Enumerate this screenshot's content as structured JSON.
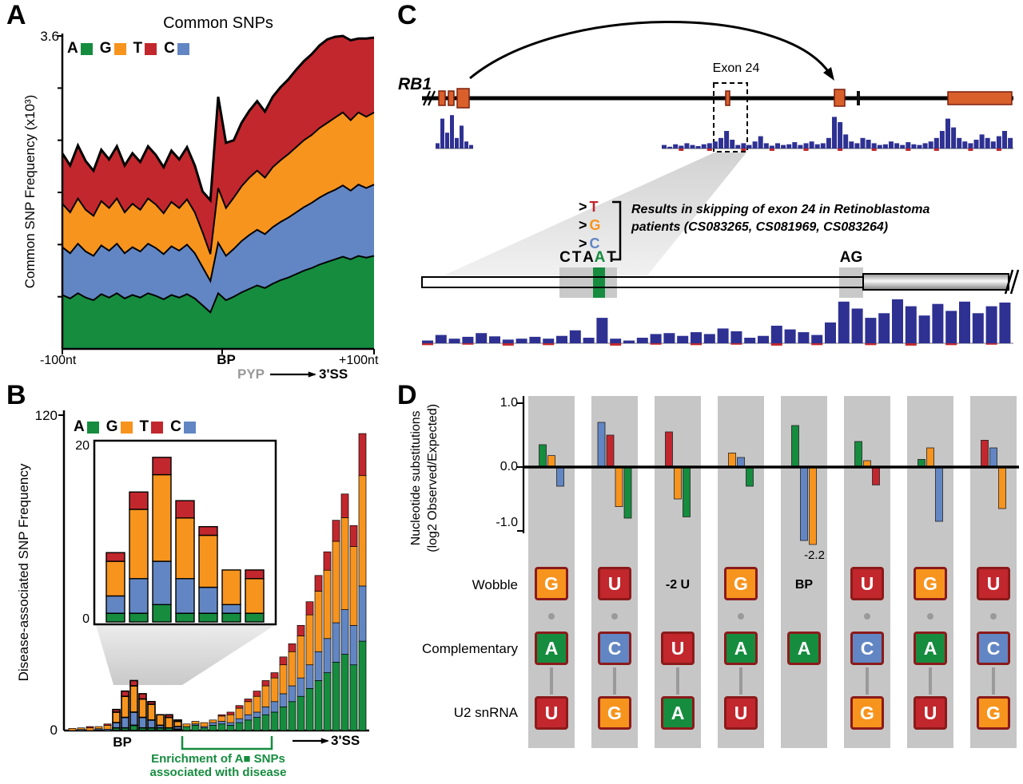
{
  "nt_legend": [
    {
      "letter": "A",
      "color": "#168c3f"
    },
    {
      "letter": "G",
      "color": "#f7941e"
    },
    {
      "letter": "T",
      "color": "#c1272d"
    },
    {
      "letter": "C",
      "color": "#6286c3"
    }
  ],
  "colors": {
    "green": "#168c3f",
    "orange": "#f7941e",
    "red": "#c1272d",
    "blue": "#6286c3",
    "navy": "#2e3192",
    "exon": "#d9602b",
    "exon_border": "#7b1f0e",
    "band_gray": "#c6c6c6",
    "box_border": "#8b1a1a",
    "pyp_gray": "#999999"
  },
  "panelA": {
    "label": "A",
    "title": "Common SNPs",
    "ylabel": "Common SNP Frequency (x10³)",
    "ymax_label": "3.6",
    "x_left": "-100nt",
    "x_bp": "BP",
    "x_pyp": "PYP",
    "x_3ss": "3'SS",
    "x_right": "+100nt"
  },
  "panelB": {
    "label": "B",
    "ylabel": "Disease-associated SNP Frequency",
    "y_top": "120",
    "y_bottom": "0",
    "inset_top": "20",
    "inset_bottom": "0",
    "x_bp": "BP",
    "x_3ss": "3'SS",
    "bracket_line1": "Enrichment of A■ SNPs",
    "bracket_line2": "associated with disease"
  },
  "panelC": {
    "label": "C",
    "gene": "RB1",
    "exon_label": "Exon 24",
    "sequence": [
      "C",
      "T",
      "A",
      "A",
      "T"
    ],
    "sequence_green_index": 3,
    "ag_label": "AG",
    "substitutions": [
      {
        "prefix": ">",
        "letter": "T",
        "color": "#c1272d"
      },
      {
        "prefix": ">",
        "letter": "G",
        "color": "#f7941e"
      },
      {
        "prefix": ">",
        "letter": "C",
        "color": "#6286c3"
      }
    ],
    "note_line1": "Results in skipping of exon 24 in Retinoblastoma",
    "note_line2": "patients (CS083265, CS081969, CS083264)"
  },
  "panelD": {
    "label": "D",
    "ylabel_line1": "Nucleotide substitutions",
    "ylabel_line2": "(log2 Observed/Expected)",
    "yticks": {
      "top": "1.0",
      "zero": "0.0",
      "neg": "-1.0"
    },
    "annotation": "-2.2",
    "row_labels": {
      "wobble": "Wobble",
      "comp": "Complementary",
      "u2": "U2 snRNA"
    },
    "nt_colors": {
      "A": "#168c3f",
      "C": "#6286c3",
      "G": "#f7941e",
      "T": "#c1272d",
      "U": "#c1272d"
    },
    "columns": [
      {
        "wobble": "G",
        "comp": "A",
        "u2": "U"
      },
      {
        "wobble": "U",
        "comp": "C",
        "u2": "G"
      },
      {
        "wobble": null,
        "top_label": "-2 U",
        "comp": "U",
        "u2": "A"
      },
      {
        "wobble": "G",
        "comp": "A",
        "u2": "U"
      },
      {
        "wobble": null,
        "top_label": "BP",
        "comp": "A",
        "u2": null
      },
      {
        "wobble": "U",
        "comp": "C",
        "u2": "G"
      },
      {
        "wobble": "G",
        "comp": "A",
        "u2": "U"
      },
      {
        "wobble": "U",
        "comp": "C",
        "u2": "G"
      }
    ]
  },
  "chart_data": [
    {
      "id": "panelA",
      "type": "area",
      "title": "Common SNPs",
      "ylabel": "Common SNP Frequency (x10³)",
      "ylim": [
        0,
        3.6
      ],
      "x_range": [
        "-100nt",
        "+100nt"
      ],
      "x_marks": [
        "BP",
        "3'SS"
      ],
      "stack_order": [
        "A",
        "C",
        "G",
        "T"
      ],
      "series": {
        "A": [
          0.62,
          0.58,
          0.64,
          0.59,
          0.56,
          0.63,
          0.59,
          0.64,
          0.58,
          0.62,
          0.59,
          0.64,
          0.61,
          0.57,
          0.62,
          0.59,
          0.63,
          0.58,
          0.5,
          0.42,
          0.64,
          0.56,
          0.6,
          0.65,
          0.69,
          0.73,
          0.7,
          0.75,
          0.79,
          0.82,
          0.86,
          0.9,
          0.93,
          0.97,
          1.0,
          1.03,
          1.06,
          1.03,
          1.07,
          1.05,
          1.07
        ],
        "C": [
          0.55,
          0.52,
          0.57,
          0.53,
          0.51,
          0.56,
          0.54,
          0.57,
          0.52,
          0.55,
          0.53,
          0.57,
          0.55,
          0.52,
          0.56,
          0.54,
          0.57,
          0.52,
          0.44,
          0.36,
          0.58,
          0.51,
          0.55,
          0.59,
          0.62,
          0.64,
          0.62,
          0.65,
          0.67,
          0.69,
          0.71,
          0.73,
          0.75,
          0.77,
          0.79,
          0.8,
          0.82,
          0.79,
          0.82,
          0.8,
          0.82
        ],
        "G": [
          0.5,
          0.47,
          0.52,
          0.48,
          0.46,
          0.51,
          0.49,
          0.52,
          0.47,
          0.5,
          0.48,
          0.52,
          0.5,
          0.47,
          0.51,
          0.49,
          0.52,
          0.47,
          0.4,
          0.31,
          0.63,
          0.55,
          0.59,
          0.63,
          0.66,
          0.68,
          0.65,
          0.69,
          0.71,
          0.73,
          0.75,
          0.77,
          0.78,
          0.8,
          0.81,
          0.83,
          0.84,
          0.81,
          0.83,
          0.82,
          0.83
        ],
        "T": [
          0.58,
          0.54,
          0.61,
          0.56,
          0.52,
          0.59,
          0.56,
          0.6,
          0.54,
          0.58,
          0.55,
          0.6,
          0.57,
          0.53,
          0.59,
          0.56,
          0.6,
          0.54,
          0.47,
          0.62,
          1.05,
          0.75,
          0.66,
          0.73,
          0.77,
          0.8,
          0.76,
          0.81,
          0.84,
          0.86,
          0.89,
          0.91,
          0.93,
          0.95,
          0.96,
          0.93,
          0.88,
          0.92,
          0.85,
          0.9,
          0.86
        ]
      }
    },
    {
      "id": "panelB",
      "type": "bar",
      "stacked": true,
      "ylim": [
        0,
        120
      ],
      "stack_order": [
        "A",
        "C",
        "G",
        "T"
      ],
      "highlight_outline_from": 5,
      "highlight_outline_to": 12,
      "bars": [
        [
          0,
          0,
          0.8,
          0
        ],
        [
          0,
          0.4,
          0.6,
          0
        ],
        [
          0,
          0,
          1,
          0.5
        ],
        [
          0.3,
          0.4,
          0.8,
          0
        ],
        [
          0,
          0.5,
          1.5,
          0.5
        ],
        [
          1,
          2,
          4,
          1
        ],
        [
          1,
          4,
          8,
          2
        ],
        [
          2,
          5,
          10,
          2
        ],
        [
          1,
          4,
          7,
          2
        ],
        [
          1,
          3,
          6,
          1
        ],
        [
          1,
          1,
          4,
          0
        ],
        [
          1,
          0,
          4,
          1
        ],
        [
          0.5,
          1,
          2,
          0.5
        ],
        [
          1.5,
          0,
          1,
          0
        ],
        [
          2,
          0.5,
          1,
          0
        ],
        [
          1,
          0.5,
          1.5,
          0
        ],
        [
          2,
          1,
          1,
          0
        ],
        [
          2.5,
          1,
          2,
          0.5
        ],
        [
          2,
          1,
          3,
          1
        ],
        [
          3,
          1.5,
          4,
          1
        ],
        [
          4,
          2,
          5,
          1
        ],
        [
          5,
          2,
          6,
          2
        ],
        [
          6,
          3,
          8,
          2
        ],
        [
          7,
          4,
          9,
          2
        ],
        [
          9,
          5,
          11,
          3
        ],
        [
          11,
          6,
          13,
          3
        ],
        [
          13,
          7,
          16,
          4
        ],
        [
          16,
          9,
          19,
          5
        ],
        [
          19,
          11,
          23,
          6
        ],
        [
          22,
          13,
          26,
          7
        ],
        [
          26,
          15,
          31,
          8
        ],
        [
          29,
          17,
          35,
          9
        ],
        [
          25,
          15,
          30,
          8
        ],
        [
          34,
          21,
          42,
          16
        ]
      ],
      "inset": {
        "ylim": [
          0,
          20
        ],
        "bars": [
          [
            1,
            2,
            4,
            1
          ],
          [
            1,
            4,
            8,
            2
          ],
          [
            2,
            5,
            10,
            2
          ],
          [
            1,
            4,
            7,
            2
          ],
          [
            1,
            3,
            6,
            1
          ],
          [
            1,
            1,
            4,
            0
          ],
          [
            1,
            0,
            4,
            1
          ]
        ]
      }
    },
    {
      "id": "panelC",
      "type": "bar",
      "tracks": {
        "gene_left": [
          0.15,
          0.85,
          0.45,
          0.95,
          0.3,
          0.65,
          0.2,
          0.1
        ],
        "gene_right": [
          0.1,
          0.05,
          0.12,
          0.08,
          0.15,
          0.1,
          0.07,
          0.12,
          0.15,
          0.2,
          0.3,
          0.5,
          0.25,
          0.1,
          0.15,
          0.1,
          0.2,
          0.35,
          0.15,
          0.08,
          0.15,
          0.1,
          0.12,
          0.18,
          0.1,
          0.15,
          0.2,
          0.12,
          0.15,
          0.3,
          0.9,
          0.75,
          0.4,
          0.2,
          0.15,
          0.3,
          0.25,
          0.15,
          0.1,
          0.12,
          0.2,
          0.15,
          0.1,
          0.18,
          0.12,
          0.1,
          0.15,
          0.2,
          0.3,
          0.5,
          0.85,
          0.6,
          0.3,
          0.2,
          0.15,
          0.25,
          0.4,
          0.3,
          0.2,
          0.35,
          0.5,
          0.3
        ],
        "gene_neg_idx": [
          3,
          8,
          14,
          19,
          25,
          31,
          37,
          43,
          48,
          54,
          59
        ],
        "zoom": [
          0.06,
          0.18,
          0.1,
          0.14,
          0.22,
          0.15,
          0.08,
          0.1,
          0.14,
          0.1,
          0.16,
          0.28,
          0.12,
          0.55,
          0.1,
          0.06,
          0.12,
          0.2,
          0.22,
          0.16,
          0.24,
          0.2,
          0.32,
          0.26,
          0.12,
          0.16,
          0.38,
          0.3,
          0.24,
          0.18,
          0.45,
          0.9,
          0.75,
          0.55,
          0.65,
          0.95,
          0.8,
          0.6,
          0.85,
          0.7,
          0.9,
          0.65,
          0.8,
          0.88
        ],
        "zoom_neg": [
          0.04,
          0,
          0,
          0.03,
          0,
          0,
          0.05,
          0,
          0,
          0.04,
          0,
          0,
          0,
          0,
          0.05,
          0,
          0,
          0.03,
          0,
          0,
          0.04,
          0,
          0,
          0.03,
          0,
          0,
          0.05,
          0,
          0,
          0.04,
          0,
          0,
          0,
          0.04,
          0,
          0,
          0.05,
          0,
          0,
          0.04,
          0,
          0,
          0.03,
          0
        ]
      }
    },
    {
      "id": "panelD",
      "type": "bar",
      "ylim": [
        -1,
        1
      ],
      "yticks": [
        1.0,
        0.0,
        -1.0
      ],
      "groups": [
        [
          {
            "nt": "A",
            "v": 0.35
          },
          {
            "nt": "G",
            "v": 0.18
          },
          {
            "nt": "C",
            "v": -0.3
          }
        ],
        [
          {
            "nt": "C",
            "v": 0.7
          },
          {
            "nt": "T",
            "v": 0.5
          },
          {
            "nt": "G",
            "v": -0.62
          },
          {
            "nt": "A",
            "v": -0.8
          }
        ],
        [
          {
            "nt": "T",
            "v": 0.55
          },
          {
            "nt": "G",
            "v": -0.5
          },
          {
            "nt": "A",
            "v": -0.78
          }
        ],
        [
          {
            "nt": "G",
            "v": 0.22
          },
          {
            "nt": "C",
            "v": 0.15
          },
          {
            "nt": "A",
            "v": -0.3
          }
        ],
        [
          {
            "nt": "A",
            "v": 0.65
          },
          {
            "nt": "C",
            "v": -1.15
          },
          {
            "nt": "G",
            "v": -2.2,
            "clipped": true
          }
        ],
        [
          {
            "nt": "A",
            "v": 0.4
          },
          {
            "nt": "G",
            "v": 0.1
          },
          {
            "nt": "T",
            "v": -0.28
          }
        ],
        [
          {
            "nt": "A",
            "v": 0.12
          },
          {
            "nt": "G",
            "v": 0.3
          },
          {
            "nt": "C",
            "v": -0.85
          }
        ],
        [
          {
            "nt": "T",
            "v": 0.42
          },
          {
            "nt": "C",
            "v": 0.3
          },
          {
            "nt": "G",
            "v": -0.65
          }
        ]
      ],
      "annotation": {
        "text": "-2.2",
        "group": 4
      }
    }
  ]
}
